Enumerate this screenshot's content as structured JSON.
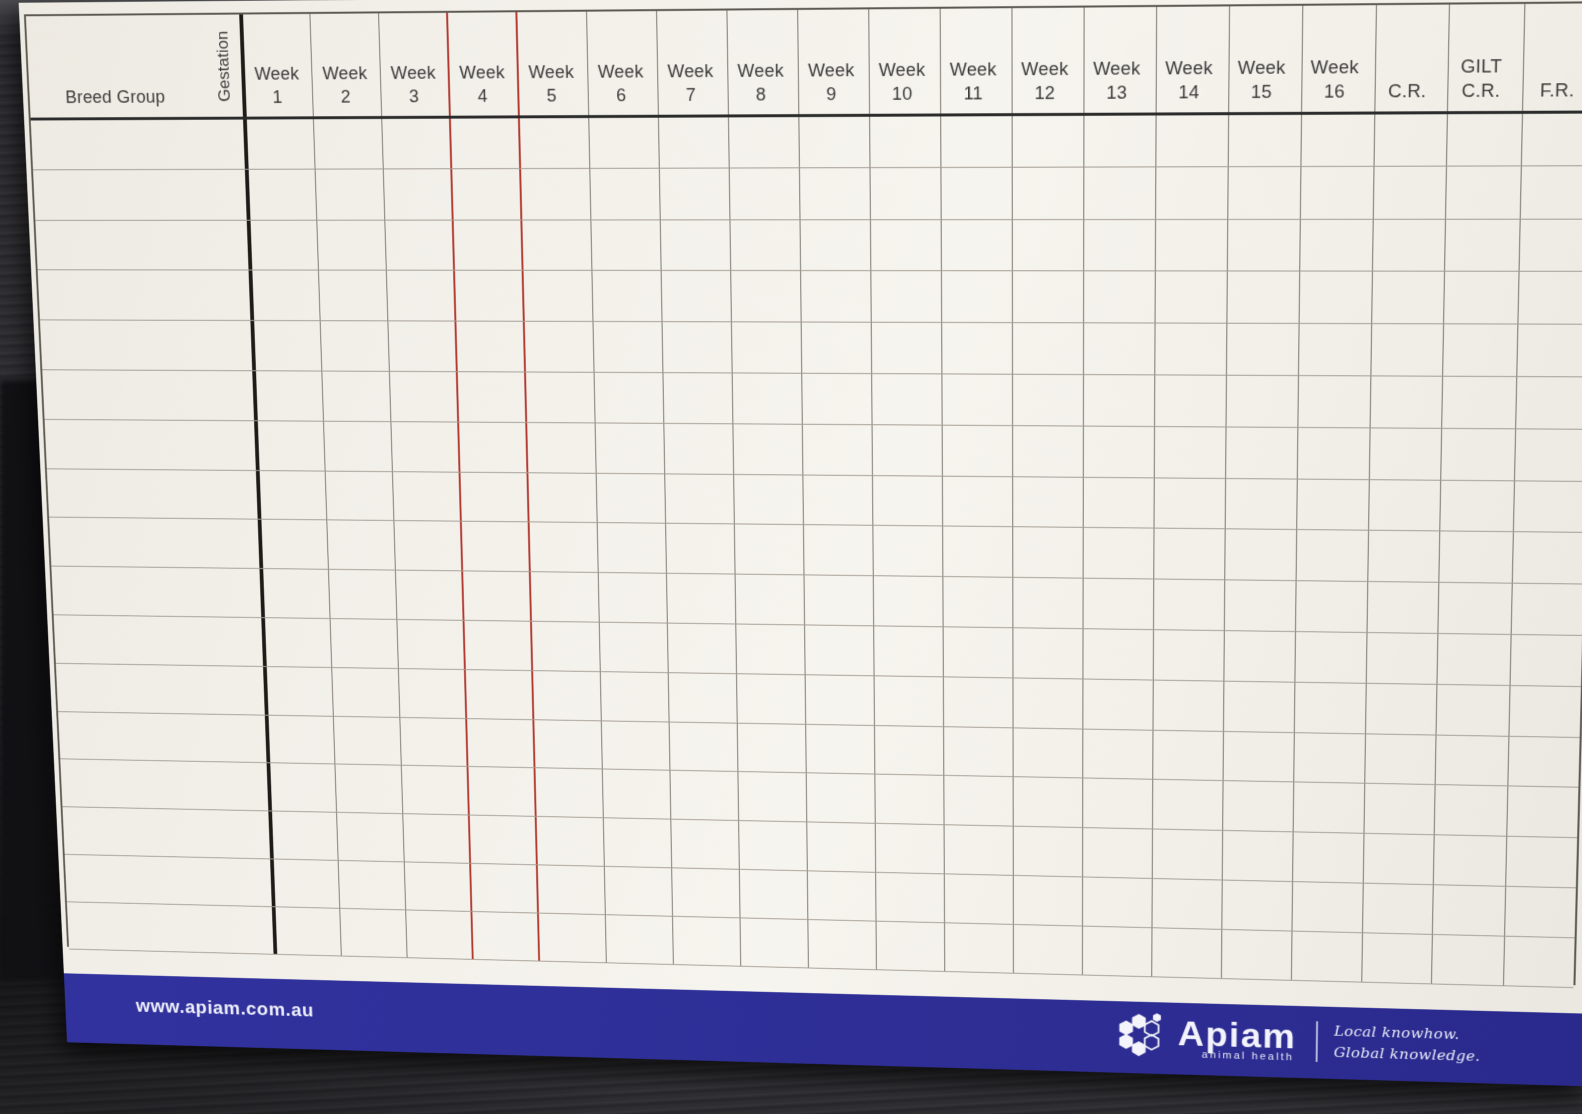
{
  "header": {
    "breed_group": "Breed Group",
    "gestation": "Gestation",
    "week_word": "Week",
    "week_numbers": [
      "1",
      "2",
      "3",
      "4",
      "5",
      "6",
      "7",
      "8",
      "9",
      "10",
      "11",
      "12",
      "13",
      "14",
      "15",
      "16"
    ],
    "cr": "C.R.",
    "gilt_cr_line1": "GILT",
    "gilt_cr_line2": "C.R.",
    "fr": "F.R."
  },
  "grid": {
    "body_rows": 17,
    "week_columns": 16,
    "red_marked_week": 4
  },
  "banner": {
    "url": "www.apiam.com.au",
    "logo_brand": "Apiam",
    "logo_sub": "animal health",
    "tagline_line1": "Local knowhow.",
    "tagline_line2": "Global knowledge."
  },
  "colors": {
    "banner_blue": "#2e2e96",
    "red_line": "#b23a31",
    "black_line": "#1d1b18",
    "row_line": "#a39d94",
    "column_line": "#7c7870",
    "header_border": "#2b2b2b",
    "board_white": "#f2efe9"
  }
}
